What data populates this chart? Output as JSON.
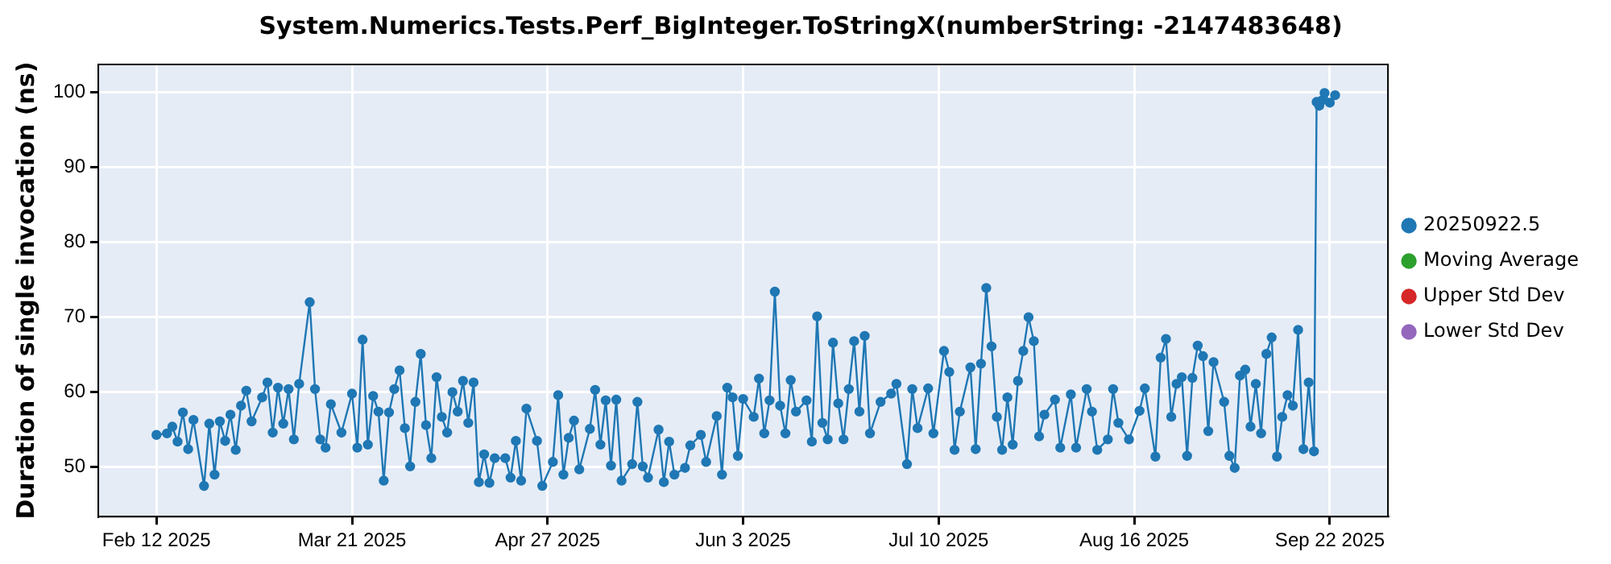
{
  "chart_data": {
    "type": "line",
    "title": "System.Numerics.Tests.Perf_BigInteger.ToStringX(numberString: -2147483648)",
    "ylabel": "Duration of single invocation (ns)",
    "xlim": [
      "2025-02-01",
      "2025-10-03"
    ],
    "xticks": [
      {
        "value": "2025-02-12",
        "label": "Feb 12 2025"
      },
      {
        "value": "2025-03-21",
        "label": "Mar 21 2025"
      },
      {
        "value": "2025-04-27",
        "label": "Apr 27 2025"
      },
      {
        "value": "2025-06-03",
        "label": "Jun 3 2025"
      },
      {
        "value": "2025-07-10",
        "label": "Jul 10 2025"
      },
      {
        "value": "2025-08-16",
        "label": "Aug 16 2025"
      },
      {
        "value": "2025-09-22",
        "label": "Sep 22 2025"
      }
    ],
    "ylim": [
      43.4,
      103.7
    ],
    "yticks": [
      50,
      60,
      70,
      80,
      90,
      100
    ],
    "grid": true,
    "legend": "right",
    "marker": "circle",
    "line_style": "solid",
    "series": [
      {
        "name": "20250922.5",
        "color": "#1f77b4",
        "x": [
          "2025-02-12",
          "2025-02-14",
          "2025-02-15",
          "2025-02-16",
          "2025-02-17",
          "2025-02-18",
          "2025-02-19",
          "2025-02-21",
          "2025-02-22",
          "2025-02-23",
          "2025-02-24",
          "2025-02-25",
          "2025-02-26",
          "2025-02-27",
          "2025-02-28",
          "2025-03-01",
          "2025-03-02",
          "2025-03-04",
          "2025-03-05",
          "2025-03-06",
          "2025-03-07",
          "2025-03-08",
          "2025-03-09",
          "2025-03-10",
          "2025-03-11",
          "2025-03-13",
          "2025-03-14",
          "2025-03-15",
          "2025-03-16",
          "2025-03-17",
          "2025-03-19",
          "2025-03-21",
          "2025-03-22",
          "2025-03-23",
          "2025-03-24",
          "2025-03-25",
          "2025-03-26",
          "2025-03-27",
          "2025-03-28",
          "2025-03-29",
          "2025-03-30",
          "2025-03-31",
          "2025-04-01",
          "2025-04-02",
          "2025-04-03",
          "2025-04-04",
          "2025-04-05",
          "2025-04-06",
          "2025-04-07",
          "2025-04-08",
          "2025-04-09",
          "2025-04-10",
          "2025-04-11",
          "2025-04-12",
          "2025-04-13",
          "2025-04-14",
          "2025-04-15",
          "2025-04-16",
          "2025-04-17",
          "2025-04-19",
          "2025-04-20",
          "2025-04-21",
          "2025-04-22",
          "2025-04-23",
          "2025-04-25",
          "2025-04-26",
          "2025-04-28",
          "2025-04-29",
          "2025-04-30",
          "2025-05-01",
          "2025-05-02",
          "2025-05-03",
          "2025-05-05",
          "2025-05-06",
          "2025-05-07",
          "2025-05-08",
          "2025-05-09",
          "2025-05-10",
          "2025-05-11",
          "2025-05-13",
          "2025-05-14",
          "2025-05-15",
          "2025-05-16",
          "2025-05-18",
          "2025-05-19",
          "2025-05-20",
          "2025-05-21",
          "2025-05-23",
          "2025-05-24",
          "2025-05-26",
          "2025-05-27",
          "2025-05-29",
          "2025-05-30",
          "2025-05-31",
          "2025-06-01",
          "2025-06-02",
          "2025-06-03",
          "2025-06-05",
          "2025-06-06",
          "2025-06-07",
          "2025-06-08",
          "2025-06-09",
          "2025-06-10",
          "2025-06-11",
          "2025-06-12",
          "2025-06-13",
          "2025-06-15",
          "2025-06-16",
          "2025-06-17",
          "2025-06-18",
          "2025-06-19",
          "2025-06-20",
          "2025-06-21",
          "2025-06-22",
          "2025-06-23",
          "2025-06-24",
          "2025-06-25",
          "2025-06-26",
          "2025-06-27",
          "2025-06-29",
          "2025-07-01",
          "2025-07-02",
          "2025-07-04",
          "2025-07-05",
          "2025-07-06",
          "2025-07-08",
          "2025-07-09",
          "2025-07-11",
          "2025-07-12",
          "2025-07-13",
          "2025-07-14",
          "2025-07-16",
          "2025-07-17",
          "2025-07-18",
          "2025-07-19",
          "2025-07-20",
          "2025-07-21",
          "2025-07-22",
          "2025-07-23",
          "2025-07-24",
          "2025-07-25",
          "2025-07-26",
          "2025-07-27",
          "2025-07-28",
          "2025-07-29",
          "2025-07-30",
          "2025-08-01",
          "2025-08-02",
          "2025-08-04",
          "2025-08-05",
          "2025-08-07",
          "2025-08-08",
          "2025-08-09",
          "2025-08-11",
          "2025-08-12",
          "2025-08-13",
          "2025-08-15",
          "2025-08-17",
          "2025-08-18",
          "2025-08-20",
          "2025-08-21",
          "2025-08-22",
          "2025-08-23",
          "2025-08-24",
          "2025-08-25",
          "2025-08-26",
          "2025-08-27",
          "2025-08-28",
          "2025-08-29",
          "2025-08-30",
          "2025-08-31",
          "2025-09-02",
          "2025-09-03",
          "2025-09-04",
          "2025-09-05",
          "2025-09-06",
          "2025-09-07",
          "2025-09-08",
          "2025-09-09",
          "2025-09-10",
          "2025-09-11",
          "2025-09-12",
          "2025-09-13",
          "2025-09-14",
          "2025-09-15",
          "2025-09-16",
          "2025-09-17",
          "2025-09-18",
          "2025-09-19",
          "2025-09-19T12:00",
          "2025-09-20",
          "2025-09-20T12:00",
          "2025-09-21",
          "2025-09-22",
          "2025-09-23"
        ],
        "values": [
          54.3,
          54.5,
          55.4,
          53.4,
          57.3,
          52.4,
          56.3,
          47.5,
          55.8,
          49.0,
          56.1,
          53.5,
          57.0,
          52.3,
          58.2,
          60.2,
          56.1,
          59.3,
          61.3,
          54.6,
          60.6,
          55.8,
          60.4,
          53.7,
          61.1,
          72.0,
          60.4,
          53.7,
          52.6,
          58.4,
          54.6,
          59.8,
          52.6,
          67.0,
          53.0,
          59.5,
          57.4,
          48.2,
          57.3,
          60.4,
          62.9,
          55.2,
          50.1,
          58.7,
          65.1,
          55.6,
          51.2,
          62.0,
          56.7,
          54.6,
          60.0,
          57.4,
          61.5,
          55.9,
          61.3,
          48.0,
          51.7,
          47.9,
          51.2,
          51.2,
          48.6,
          53.5,
          48.2,
          57.8,
          53.5,
          47.5,
          50.7,
          59.6,
          49.0,
          53.9,
          56.2,
          49.7,
          55.1,
          60.3,
          53.0,
          58.9,
          50.2,
          59.0,
          48.2,
          50.4,
          58.7,
          50.1,
          48.6,
          55.0,
          48.0,
          53.4,
          49.0,
          49.9,
          52.9,
          54.3,
          50.7,
          56.8,
          49.0,
          60.6,
          59.3,
          51.5,
          59.1,
          56.7,
          61.8,
          54.5,
          58.9,
          73.4,
          58.2,
          54.5,
          61.6,
          57.4,
          58.9,
          53.4,
          70.1,
          55.9,
          53.7,
          66.6,
          58.5,
          53.7,
          60.4,
          66.8,
          57.4,
          67.5,
          54.5,
          58.7,
          59.8,
          61.1,
          50.4,
          60.4,
          55.2,
          60.5,
          54.5,
          65.5,
          62.7,
          52.3,
          57.4,
          63.3,
          52.4,
          63.8,
          73.9,
          66.1,
          56.7,
          52.3,
          59.3,
          53.0,
          61.5,
          65.5,
          70.0,
          66.8,
          54.1,
          57.0,
          59.0,
          52.6,
          59.7,
          52.6,
          60.4,
          57.4,
          52.3,
          53.7,
          60.4,
          55.9,
          53.7,
          57.5,
          60.5,
          51.4,
          64.6,
          67.1,
          56.7,
          61.1,
          62.0,
          51.5,
          61.9,
          66.2,
          64.8,
          54.8,
          64.0,
          58.7,
          51.5,
          49.9,
          62.2,
          63.0,
          55.4,
          61.1,
          54.5,
          65.1,
          67.3,
          51.4,
          56.7,
          59.6,
          58.2,
          68.3,
          52.4,
          61.3,
          52.1,
          98.7,
          98.2,
          98.9,
          99.9,
          98.6,
          99.6
        ]
      },
      {
        "name": "Moving Average",
        "color": "#2ca02c"
      },
      {
        "name": "Upper Std Dev",
        "color": "#d62728"
      },
      {
        "name": "Lower Std Dev",
        "color": "#9467bd"
      }
    ]
  }
}
